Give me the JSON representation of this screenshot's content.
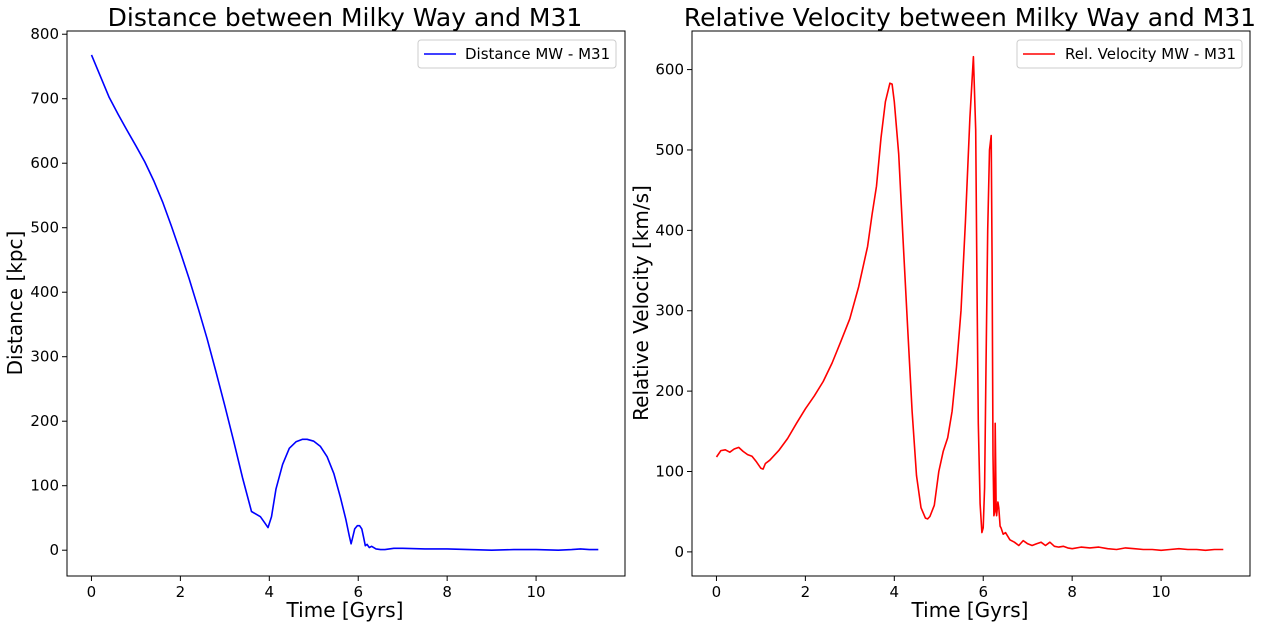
{
  "chart_data": [
    {
      "type": "line",
      "title": "Distance between Milky Way and M31",
      "xlabel": "Time [Gyrs]",
      "ylabel": "Distance [kpc]",
      "xlim": [
        -0.55,
        12.0
      ],
      "ylim": [
        -40,
        805
      ],
      "xticks": [
        "0",
        "2",
        "4",
        "6",
        "8",
        "10"
      ],
      "xtick_values": [
        0,
        2,
        4,
        6,
        8,
        10
      ],
      "yticks": [
        "0",
        "100",
        "200",
        "300",
        "400",
        "500",
        "600",
        "700",
        "800"
      ],
      "ytick_values": [
        0,
        100,
        200,
        300,
        400,
        500,
        600,
        700,
        800
      ],
      "grid": false,
      "legend_position": "top-right",
      "series": [
        {
          "name": "Distance MW - M31",
          "color": "#0000ff",
          "x": [
            0.0,
            0.2,
            0.4,
            0.6,
            0.8,
            1.0,
            1.2,
            1.4,
            1.6,
            1.8,
            2.0,
            2.2,
            2.4,
            2.6,
            2.8,
            3.0,
            3.2,
            3.4,
            3.6,
            3.8,
            3.9,
            3.97,
            4.05,
            4.15,
            4.3,
            4.45,
            4.6,
            4.75,
            4.85,
            5.0,
            5.15,
            5.3,
            5.45,
            5.6,
            5.72,
            5.8,
            5.84,
            5.87,
            5.92,
            5.98,
            6.03,
            6.08,
            6.12,
            6.16,
            6.2,
            6.25,
            6.3,
            6.4,
            6.5,
            6.6,
            6.8,
            7.0,
            7.5,
            8.0,
            8.5,
            9.0,
            9.5,
            10.0,
            10.5,
            10.8,
            11.0,
            11.2,
            11.4
          ],
          "y": [
            768,
            735,
            702,
            676,
            651,
            627,
            602,
            573,
            540,
            502,
            462,
            420,
            375,
            328,
            277,
            224,
            169,
            112,
            60,
            52,
            42,
            35,
            52,
            95,
            133,
            158,
            168,
            172,
            172,
            169,
            161,
            145,
            119,
            82,
            48,
            22,
            10,
            18,
            33,
            38,
            38,
            33,
            20,
            7,
            9,
            4,
            6,
            2,
            1,
            1,
            3,
            3,
            2,
            2,
            1,
            0,
            1,
            1,
            0,
            1,
            2,
            1,
            1
          ]
        }
      ]
    },
    {
      "type": "line",
      "title": "Relative Velocity between Milky Way and M31",
      "xlabel": "Time [Gyrs]",
      "ylabel": "Relative Velocity [km/s]",
      "xlim": [
        -0.55,
        12.0
      ],
      "ylim": [
        -30,
        648
      ],
      "xticks": [
        "0",
        "2",
        "4",
        "6",
        "8",
        "10"
      ],
      "xtick_values": [
        0,
        2,
        4,
        6,
        8,
        10
      ],
      "yticks": [
        "0",
        "100",
        "200",
        "300",
        "400",
        "500",
        "600"
      ],
      "ytick_values": [
        0,
        100,
        200,
        300,
        400,
        500,
        600
      ],
      "grid": false,
      "legend_position": "top-right",
      "series": [
        {
          "name": "Rel. Velocity MW - M31",
          "color": "#ff0000",
          "x": [
            0.0,
            0.1,
            0.2,
            0.3,
            0.4,
            0.5,
            0.6,
            0.7,
            0.8,
            0.9,
            1.0,
            1.05,
            1.1,
            1.2,
            1.4,
            1.6,
            1.8,
            2.0,
            2.2,
            2.4,
            2.6,
            2.8,
            3.0,
            3.2,
            3.4,
            3.5,
            3.6,
            3.7,
            3.8,
            3.9,
            3.95,
            4.0,
            4.1,
            4.2,
            4.3,
            4.4,
            4.5,
            4.6,
            4.7,
            4.75,
            4.8,
            4.9,
            5.0,
            5.1,
            5.2,
            5.3,
            5.4,
            5.5,
            5.6,
            5.7,
            5.78,
            5.83,
            5.86,
            5.89,
            5.93,
            5.97,
            6.0,
            6.03,
            6.06,
            6.1,
            6.14,
            6.18,
            6.2,
            6.22,
            6.24,
            6.26,
            6.27,
            6.29,
            6.3,
            6.31,
            6.33,
            6.35,
            6.38,
            6.4,
            6.45,
            6.5,
            6.6,
            6.7,
            6.8,
            6.9,
            7.0,
            7.1,
            7.2,
            7.3,
            7.4,
            7.5,
            7.6,
            7.7,
            7.8,
            7.9,
            8.0,
            8.2,
            8.4,
            8.6,
            8.8,
            9.0,
            9.2,
            9.4,
            9.6,
            9.8,
            10.0,
            10.2,
            10.4,
            10.6,
            10.8,
            11.0,
            11.2,
            11.4
          ],
          "y": [
            118,
            126,
            127,
            124,
            128,
            130,
            125,
            121,
            119,
            112,
            104,
            103,
            110,
            114,
            126,
            141,
            160,
            178,
            194,
            212,
            235,
            262,
            290,
            330,
            380,
            420,
            455,
            515,
            560,
            583,
            582,
            560,
            495,
            385,
            280,
            175,
            95,
            55,
            42,
            41,
            44,
            58,
            100,
            125,
            142,
            175,
            230,
            300,
            410,
            540,
            616,
            525,
            330,
            160,
            60,
            24,
            30,
            80,
            220,
            400,
            500,
            518,
            360,
            120,
            45,
            50,
            160,
            60,
            45,
            50,
            62,
            55,
            32,
            30,
            22,
            24,
            15,
            12,
            8,
            14,
            10,
            8,
            10,
            12,
            8,
            12,
            7,
            6,
            7,
            5,
            4,
            6,
            5,
            6,
            4,
            3,
            5,
            4,
            3,
            3,
            2,
            3,
            4,
            3,
            3,
            2,
            3,
            3
          ]
        }
      ]
    }
  ]
}
